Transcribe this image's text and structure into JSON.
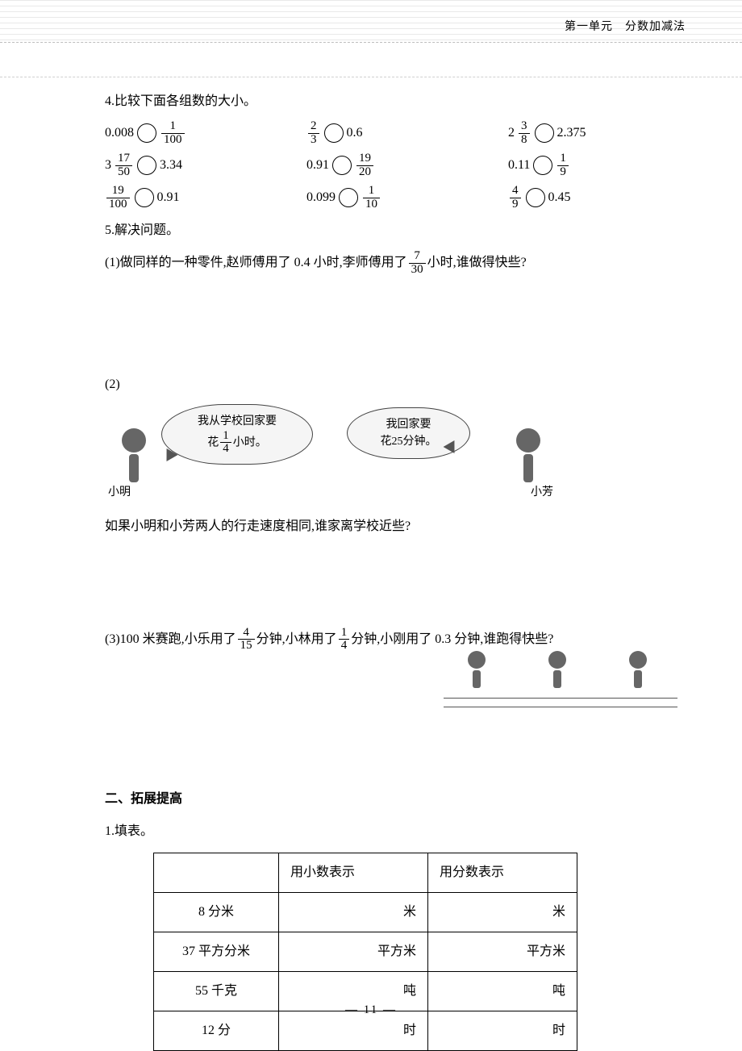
{
  "header": {
    "unit": "第一单元　分数加减法"
  },
  "q4": {
    "title": "4.比较下面各组数的大小。",
    "rows": [
      [
        {
          "l": {
            "t": "dec",
            "v": "0.008"
          },
          "r": {
            "t": "frac",
            "n": "1",
            "d": "100"
          }
        },
        {
          "l": {
            "t": "frac",
            "n": "2",
            "d": "3"
          },
          "r": {
            "t": "dec",
            "v": "0.6"
          }
        },
        {
          "l": {
            "t": "mix",
            "w": "2",
            "n": "3",
            "d": "8"
          },
          "r": {
            "t": "dec",
            "v": "2.375"
          }
        }
      ],
      [
        {
          "l": {
            "t": "mix",
            "w": "3",
            "n": "17",
            "d": "50"
          },
          "r": {
            "t": "dec",
            "v": "3.34"
          }
        },
        {
          "l": {
            "t": "dec",
            "v": "0.91"
          },
          "r": {
            "t": "frac",
            "n": "19",
            "d": "20"
          }
        },
        {
          "l": {
            "t": "dec",
            "v": "0.11"
          },
          "r": {
            "t": "frac",
            "n": "1",
            "d": "9"
          }
        }
      ],
      [
        {
          "l": {
            "t": "frac",
            "n": "19",
            "d": "100"
          },
          "r": {
            "t": "dec",
            "v": "0.91"
          }
        },
        {
          "l": {
            "t": "dec",
            "v": "0.099"
          },
          "r": {
            "t": "frac",
            "n": "1",
            "d": "10"
          }
        },
        {
          "l": {
            "t": "frac",
            "n": "4",
            "d": "9"
          },
          "r": {
            "t": "dec",
            "v": "0.45"
          }
        }
      ]
    ]
  },
  "q5": {
    "title": "5.解决问题。",
    "p1": {
      "pre": "(1)做同样的一种零件,赵师傅用了 0.4 小时,李师傅用了",
      "frac": {
        "n": "7",
        "d": "30"
      },
      "post": "小时,谁做得快些?"
    },
    "p2": {
      "label": "(2)",
      "bubble1_pre": "我从学校回家要",
      "bubble1_mid": "花",
      "bubble1_frac": {
        "n": "1",
        "d": "4"
      },
      "bubble1_post": "小时。",
      "bubble2": "我回家要\n花25分钟。",
      "name1": "小明",
      "name2": "小芳",
      "question": "如果小明和小芳两人的行走速度相同,谁家离学校近些?"
    },
    "p3": {
      "pre": "(3)100 米赛跑,小乐用了",
      "f1": {
        "n": "4",
        "d": "15"
      },
      "mid1": "分钟,小林用了",
      "f2": {
        "n": "1",
        "d": "4"
      },
      "post": "分钟,小刚用了 0.3 分钟,谁跑得快些?"
    }
  },
  "sec2": {
    "title": "二、拓展提高",
    "q1": "1.填表。"
  },
  "table": {
    "h1": "",
    "h2": "用小数表示",
    "h3": "用分数表示",
    "rows": [
      {
        "lab": "8 分米",
        "u": "米"
      },
      {
        "lab": "37 平方分米",
        "u": "平方米"
      },
      {
        "lab": "55 千克",
        "u": "吨"
      },
      {
        "lab": "12 分",
        "u": "时"
      }
    ]
  },
  "pagenum": "—  11  —",
  "colors": {
    "text": "#000000",
    "bg": "#ffffff",
    "rule": "#d0d0d0"
  }
}
